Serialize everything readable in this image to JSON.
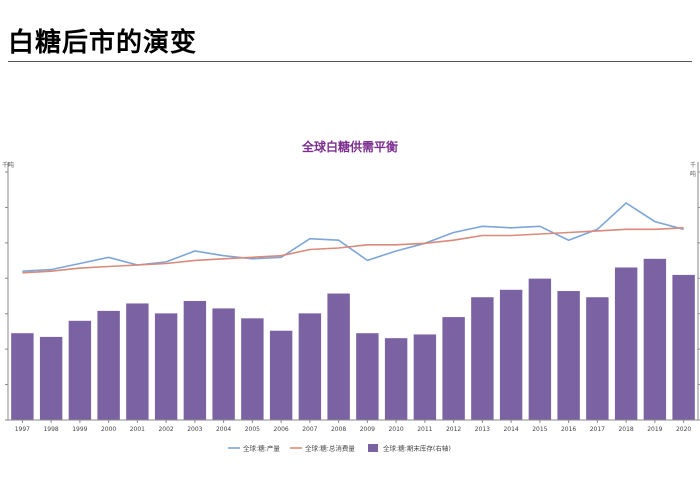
{
  "page": {
    "title": "白糖后市的演变"
  },
  "chart_data": {
    "type": "bar",
    "title": "全球白糖供需平衡",
    "y_unit_left": "千吨",
    "y_unit_right": "千吨",
    "categories": [
      "1997",
      "1998",
      "1999",
      "2000",
      "2001",
      "2002",
      "2003",
      "2004",
      "2005",
      "2006",
      "2007",
      "2008",
      "2009",
      "2010",
      "2011",
      "2012",
      "2013",
      "2014",
      "2015",
      "2016",
      "2017",
      "2018",
      "2019",
      "2020"
    ],
    "series": [
      {
        "name": "全球:糖:产量",
        "type": "line",
        "axis": "left",
        "color": "#7ea6d8",
        "values": [
          36,
          37,
          41,
          45,
          40,
          42,
          49,
          46,
          44,
          45,
          57,
          56,
          43,
          49,
          54,
          61,
          65,
          64,
          65,
          56,
          63,
          80,
          68,
          63
        ]
      },
      {
        "name": "全球:糖:总消费量",
        "type": "line",
        "axis": "left",
        "color": "#d98a7a",
        "values": [
          35,
          36,
          38,
          39,
          40,
          41,
          43,
          44,
          45,
          46,
          50,
          51,
          53,
          53,
          54,
          56,
          59,
          59,
          60,
          61,
          62,
          63,
          63,
          64
        ]
      },
      {
        "name": "全球:糖:期末库存(右轴)",
        "type": "bar",
        "axis": "right",
        "color": "#7b63a3",
        "values": [
          35,
          33.5,
          40,
          44,
          47,
          43,
          48,
          45,
          41,
          36,
          43,
          51,
          35,
          33,
          34.5,
          41.5,
          49.5,
          52.5,
          57,
          52,
          49.5,
          61.5,
          65,
          58.5
        ]
      }
    ],
    "ylim_left": [
      -60,
      100
    ],
    "ylim_right": [
      0,
      100
    ],
    "y_tick_labels_visible": false,
    "grid": false,
    "legend_position": "bottom"
  }
}
